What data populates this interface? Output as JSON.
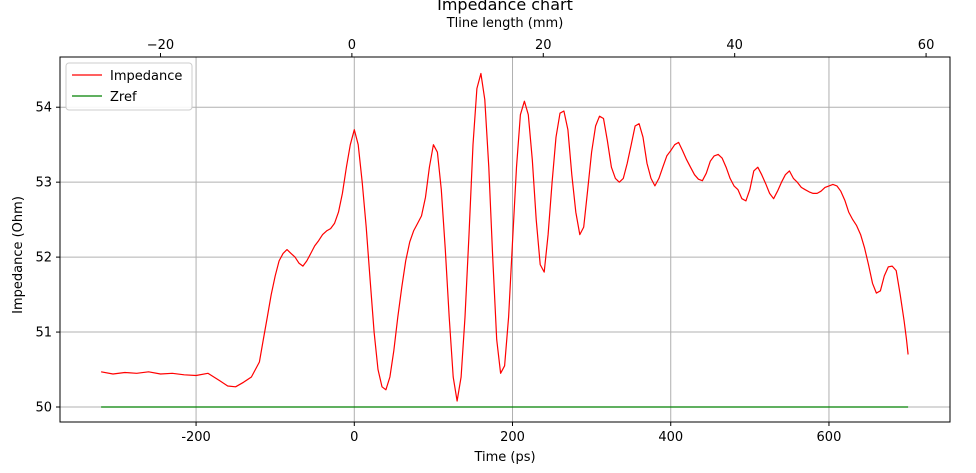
{
  "chart_data": {
    "type": "line",
    "title": "Impedance chart",
    "xlabel": "Time (ps)",
    "ylabel": "Impedance (Ohm)",
    "x2label": "Tline length (mm)",
    "xlim": [
      -372,
      753
    ],
    "ylim": [
      49.8,
      54.67
    ],
    "x2lim": [
      -30.5,
      62.5
    ],
    "xticks": [
      -200,
      0,
      200,
      400,
      600
    ],
    "yticks": [
      50,
      51,
      52,
      53,
      54
    ],
    "x2ticks": [
      -20,
      0,
      20,
      40,
      60
    ],
    "xtick_labels": [
      "-200",
      "0",
      "200",
      "400",
      "600"
    ],
    "ytick_labels": [
      "50",
      "51",
      "52",
      "53",
      "54"
    ],
    "x2tick_labels": [
      "−20",
      "0",
      "20",
      "40",
      "60"
    ],
    "grid": true,
    "legend_position": "top-left",
    "series": [
      {
        "name": "Impedance",
        "color": "#ff0000",
        "points": [
          [
            -320,
            50.47
          ],
          [
            -305,
            50.44
          ],
          [
            -290,
            50.46
          ],
          [
            -275,
            50.45
          ],
          [
            -260,
            50.47
          ],
          [
            -245,
            50.44
          ],
          [
            -230,
            50.45
          ],
          [
            -215,
            50.43
          ],
          [
            -200,
            50.42
          ],
          [
            -185,
            50.45
          ],
          [
            -170,
            50.35
          ],
          [
            -160,
            50.28
          ],
          [
            -150,
            50.27
          ],
          [
            -140,
            50.33
          ],
          [
            -130,
            50.4
          ],
          [
            -120,
            50.6
          ],
          [
            -115,
            50.9
          ],
          [
            -110,
            51.2
          ],
          [
            -105,
            51.5
          ],
          [
            -100,
            51.75
          ],
          [
            -95,
            51.95
          ],
          [
            -90,
            52.05
          ],
          [
            -85,
            52.1
          ],
          [
            -80,
            52.05
          ],
          [
            -75,
            52.0
          ],
          [
            -70,
            51.92
          ],
          [
            -65,
            51.88
          ],
          [
            -60,
            51.95
          ],
          [
            -55,
            52.05
          ],
          [
            -50,
            52.15
          ],
          [
            -45,
            52.22
          ],
          [
            -40,
            52.3
          ],
          [
            -35,
            52.35
          ],
          [
            -30,
            52.38
          ],
          [
            -25,
            52.45
          ],
          [
            -20,
            52.6
          ],
          [
            -15,
            52.85
          ],
          [
            -10,
            53.2
          ],
          [
            -5,
            53.5
          ],
          [
            0,
            53.7
          ],
          [
            5,
            53.5
          ],
          [
            10,
            53.0
          ],
          [
            15,
            52.4
          ],
          [
            20,
            51.7
          ],
          [
            25,
            51.0
          ],
          [
            30,
            50.5
          ],
          [
            35,
            50.27
          ],
          [
            40,
            50.23
          ],
          [
            45,
            50.4
          ],
          [
            50,
            50.75
          ],
          [
            55,
            51.2
          ],
          [
            60,
            51.6
          ],
          [
            65,
            51.95
          ],
          [
            70,
            52.2
          ],
          [
            75,
            52.35
          ],
          [
            80,
            52.45
          ],
          [
            85,
            52.55
          ],
          [
            90,
            52.8
          ],
          [
            95,
            53.2
          ],
          [
            100,
            53.5
          ],
          [
            105,
            53.4
          ],
          [
            110,
            52.9
          ],
          [
            115,
            52.1
          ],
          [
            120,
            51.2
          ],
          [
            125,
            50.4
          ],
          [
            130,
            50.08
          ],
          [
            135,
            50.4
          ],
          [
            140,
            51.2
          ],
          [
            145,
            52.3
          ],
          [
            150,
            53.5
          ],
          [
            155,
            54.25
          ],
          [
            160,
            54.45
          ],
          [
            165,
            54.1
          ],
          [
            170,
            53.2
          ],
          [
            175,
            52.0
          ],
          [
            180,
            50.9
          ],
          [
            185,
            50.45
          ],
          [
            190,
            50.55
          ],
          [
            195,
            51.2
          ],
          [
            200,
            52.2
          ],
          [
            205,
            53.2
          ],
          [
            210,
            53.9
          ],
          [
            215,
            54.08
          ],
          [
            220,
            53.9
          ],
          [
            225,
            53.3
          ],
          [
            230,
            52.5
          ],
          [
            235,
            51.9
          ],
          [
            240,
            51.8
          ],
          [
            245,
            52.3
          ],
          [
            250,
            53.0
          ],
          [
            255,
            53.6
          ],
          [
            260,
            53.92
          ],
          [
            265,
            53.95
          ],
          [
            270,
            53.7
          ],
          [
            275,
            53.1
          ],
          [
            280,
            52.6
          ],
          [
            285,
            52.3
          ],
          [
            290,
            52.4
          ],
          [
            295,
            52.9
          ],
          [
            300,
            53.4
          ],
          [
            305,
            53.75
          ],
          [
            310,
            53.88
          ],
          [
            315,
            53.85
          ],
          [
            320,
            53.55
          ],
          [
            325,
            53.2
          ],
          [
            330,
            53.05
          ],
          [
            335,
            53.0
          ],
          [
            340,
            53.05
          ],
          [
            345,
            53.25
          ],
          [
            350,
            53.5
          ],
          [
            355,
            53.75
          ],
          [
            360,
            53.78
          ],
          [
            365,
            53.6
          ],
          [
            370,
            53.25
          ],
          [
            375,
            53.05
          ],
          [
            380,
            52.95
          ],
          [
            385,
            53.05
          ],
          [
            390,
            53.2
          ],
          [
            395,
            53.35
          ],
          [
            400,
            53.42
          ],
          [
            405,
            53.5
          ],
          [
            410,
            53.53
          ],
          [
            415,
            53.42
          ],
          [
            420,
            53.3
          ],
          [
            425,
            53.2
          ],
          [
            430,
            53.1
          ],
          [
            435,
            53.04
          ],
          [
            440,
            53.02
          ],
          [
            445,
            53.12
          ],
          [
            450,
            53.28
          ],
          [
            455,
            53.35
          ],
          [
            460,
            53.37
          ],
          [
            465,
            53.32
          ],
          [
            470,
            53.2
          ],
          [
            475,
            53.05
          ],
          [
            480,
            52.95
          ],
          [
            485,
            52.9
          ],
          [
            490,
            52.78
          ],
          [
            495,
            52.75
          ],
          [
            500,
            52.9
          ],
          [
            505,
            53.15
          ],
          [
            510,
            53.2
          ],
          [
            515,
            53.1
          ],
          [
            520,
            52.98
          ],
          [
            525,
            52.85
          ],
          [
            530,
            52.78
          ],
          [
            535,
            52.88
          ],
          [
            540,
            53.0
          ],
          [
            545,
            53.1
          ],
          [
            550,
            53.15
          ],
          [
            555,
            53.05
          ],
          [
            560,
            53.0
          ],
          [
            565,
            52.93
          ],
          [
            570,
            52.9
          ],
          [
            575,
            52.87
          ],
          [
            580,
            52.85
          ],
          [
            585,
            52.85
          ],
          [
            590,
            52.88
          ],
          [
            595,
            52.93
          ],
          [
            600,
            52.95
          ],
          [
            605,
            52.97
          ],
          [
            610,
            52.95
          ],
          [
            615,
            52.88
          ],
          [
            620,
            52.76
          ],
          [
            625,
            52.6
          ],
          [
            630,
            52.5
          ],
          [
            635,
            52.42
          ],
          [
            640,
            52.3
          ],
          [
            645,
            52.12
          ],
          [
            650,
            51.9
          ],
          [
            655,
            51.65
          ],
          [
            660,
            51.52
          ],
          [
            665,
            51.55
          ],
          [
            670,
            51.75
          ],
          [
            675,
            51.87
          ],
          [
            680,
            51.88
          ],
          [
            685,
            51.82
          ],
          [
            690,
            51.5
          ],
          [
            695,
            51.15
          ],
          [
            698,
            50.9
          ],
          [
            700,
            50.7
          ]
        ]
      },
      {
        "name": "Zref",
        "color": "#008000",
        "points": [
          [
            -320,
            50.0
          ],
          [
            700,
            50.0
          ]
        ]
      }
    ]
  }
}
